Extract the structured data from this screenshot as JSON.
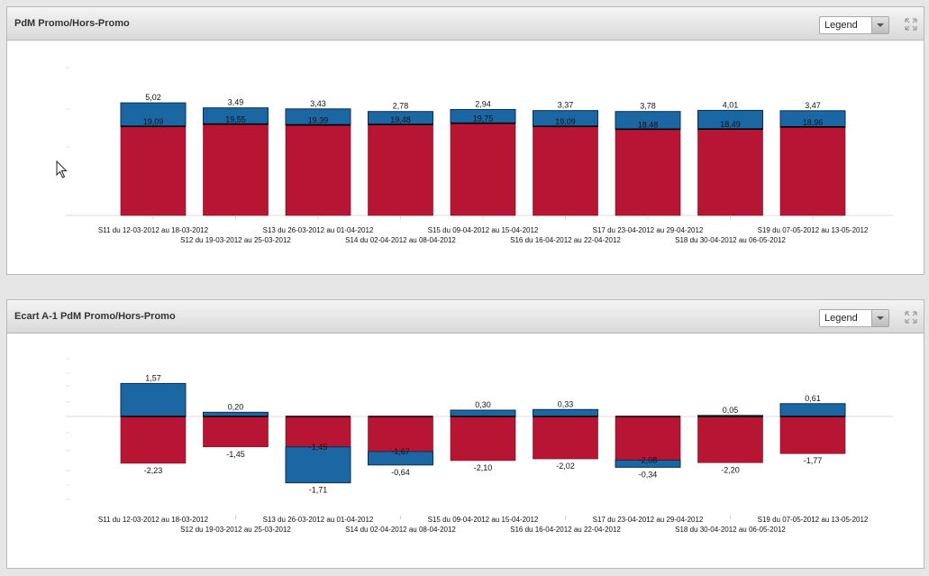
{
  "panels": [
    {
      "title": "PdM Promo/Hors-Promo",
      "legend_label": "Legend"
    },
    {
      "title": "Ecart A-1 PdM Promo/Hors-Promo",
      "legend_label": "Legend"
    }
  ],
  "colors": {
    "red": "#b81434",
    "blue": "#1a67a3"
  },
  "icons": {
    "expand": "expand-icon",
    "dropdown": "chevron-down-icon",
    "cursor": "mouse-pointer-icon"
  },
  "chart_data": [
    {
      "type": "bar",
      "stacked": true,
      "categories": [
        "S11 du 12-03-2012 au 18-03-2012",
        "S12 du 19-03-2012 au 25-03-2012",
        "S13 du 26-03-2012 au 01-04-2012",
        "S14 du 02-04-2012 au 08-04-2012",
        "S15 du 09-04-2012 au 15-04-2012",
        "S16 du 16-04-2012 au 22-04-2012",
        "S17 du 23-04-2012 au 29-04-2012",
        "S18 du 30-04-2012 au 06-05-2012",
        "S19 du 07-05-2012 au 13-05-2012"
      ],
      "series": [
        {
          "color": "#b81434",
          "values": [
            19.09,
            19.55,
            19.39,
            19.48,
            19.75,
            19.09,
            18.48,
            18.49,
            18.96
          ],
          "labels": [
            "19,09",
            "19,55",
            "19,39",
            "19,48",
            "19,75",
            "19,09",
            "18,48",
            "18,49",
            "18,96"
          ]
        },
        {
          "color": "#1a67a3",
          "values": [
            5.02,
            3.49,
            3.43,
            2.78,
            2.94,
            3.37,
            3.78,
            4.01,
            3.47
          ],
          "labels": [
            "5,02",
            "3,49",
            "3,43",
            "2,78",
            "2,94",
            "3,37",
            "3,78",
            "4,01",
            "3,47"
          ]
        }
      ],
      "ylim": [
        0,
        30
      ],
      "grid": false,
      "legend": "hidden"
    },
    {
      "type": "bar",
      "stacked": true,
      "categories": [
        "S11 du 12-03-2012 au 18-03-2012",
        "S12 du 19-03-2012 au 25-03-2012",
        "S13 du 26-03-2012 au 01-04-2012",
        "S14 du 02-04-2012 au 08-04-2012",
        "S15 du 09-04-2012 au 15-04-2012",
        "S16 du 16-04-2012 au 22-04-2012",
        "S17 du 23-04-2012 au 29-04-2012",
        "S18 du 30-04-2012 au 06-05-2012",
        "S19 du 07-05-2012 au 13-05-2012"
      ],
      "series": [
        {
          "color": "#b81434",
          "values": [
            -2.23,
            -1.45,
            -1.45,
            -1.67,
            -2.1,
            -2.02,
            -2.08,
            -2.2,
            -1.77
          ],
          "labels": [
            "-2,23",
            "-1,45",
            "-1,45",
            "-1,67",
            "-2,10",
            "-2,02",
            "-2,08",
            "-2,20",
            "-1,77"
          ]
        },
        {
          "color": "#1a67a3",
          "values": [
            1.57,
            0.2,
            -1.71,
            -0.64,
            0.3,
            0.33,
            -0.34,
            0.05,
            0.61
          ],
          "labels": [
            "1,57",
            "0,20",
            "-1,71",
            "-0,64",
            "0,30",
            "0,33",
            "-0,34",
            "0,05",
            "0,61"
          ]
        }
      ],
      "ylim": [
        -4,
        4
      ],
      "grid": false,
      "legend": "hidden"
    }
  ]
}
